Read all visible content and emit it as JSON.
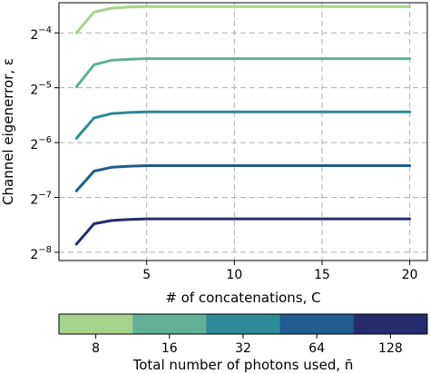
{
  "chart_data": {
    "type": "line",
    "title": "",
    "xlabel": "# of concatenations, C",
    "ylabel": "Channel eigenerror, ε",
    "x": [
      1,
      2,
      3,
      4,
      5,
      6,
      7,
      8,
      9,
      10,
      11,
      12,
      13,
      14,
      15,
      16,
      17,
      18,
      19,
      20
    ],
    "xlim": [
      0,
      21
    ],
    "xticks": [
      5,
      10,
      15,
      20
    ],
    "yscale": "log2",
    "ylim_log2": [
      -8.15,
      -3.45
    ],
    "yticks_log2": [
      -8,
      -7,
      -6,
      -5,
      -4
    ],
    "ytick_labels": [
      {
        "base": "2",
        "exp": "−8"
      },
      {
        "base": "2",
        "exp": "−7"
      },
      {
        "base": "2",
        "exp": "−6"
      },
      {
        "base": "2",
        "exp": "−5"
      },
      {
        "base": "2",
        "exp": "−4"
      }
    ],
    "grid": true,
    "series": [
      {
        "n": "8",
        "color": "#a6d38c",
        "log2_values": [
          -4.0,
          -3.62,
          -3.55,
          -3.53,
          -3.52,
          -3.52,
          -3.52,
          -3.52,
          -3.52,
          -3.52,
          -3.52,
          -3.52,
          -3.52,
          -3.52,
          -3.52,
          -3.52,
          -3.52,
          -3.52,
          -3.52,
          -3.52
        ]
      },
      {
        "n": "16",
        "color": "#61b097",
        "log2_values": [
          -4.98,
          -4.58,
          -4.5,
          -4.48,
          -4.47,
          -4.47,
          -4.47,
          -4.47,
          -4.47,
          -4.47,
          -4.47,
          -4.47,
          -4.47,
          -4.47,
          -4.47,
          -4.47,
          -4.47,
          -4.47,
          -4.47,
          -4.47
        ]
      },
      {
        "n": "32",
        "color": "#2e8a96",
        "log2_values": [
          -5.92,
          -5.55,
          -5.47,
          -5.45,
          -5.44,
          -5.44,
          -5.44,
          -5.44,
          -5.44,
          -5.44,
          -5.44,
          -5.44,
          -5.44,
          -5.44,
          -5.44,
          -5.44,
          -5.44,
          -5.44,
          -5.44,
          -5.44
        ]
      },
      {
        "n": "64",
        "color": "#1f5c90",
        "log2_values": [
          -6.88,
          -6.52,
          -6.45,
          -6.43,
          -6.42,
          -6.42,
          -6.42,
          -6.42,
          -6.42,
          -6.42,
          -6.42,
          -6.42,
          -6.42,
          -6.42,
          -6.42,
          -6.42,
          -6.42,
          -6.42,
          -6.42,
          -6.42
        ]
      },
      {
        "n": "128",
        "color": "#262c6e",
        "log2_values": [
          -7.85,
          -7.48,
          -7.42,
          -7.4,
          -7.39,
          -7.39,
          -7.39,
          -7.39,
          -7.39,
          -7.39,
          -7.39,
          -7.39,
          -7.39,
          -7.39,
          -7.39,
          -7.39,
          -7.39,
          -7.39,
          -7.39,
          -7.39
        ]
      }
    ],
    "colorbar": {
      "label": "Total number of photons used, n̄",
      "categories": [
        "8",
        "16",
        "32",
        "64",
        "128"
      ],
      "colors": [
        "#a6d38c",
        "#61b097",
        "#2e8a96",
        "#1f5c90",
        "#262c6e"
      ]
    }
  }
}
